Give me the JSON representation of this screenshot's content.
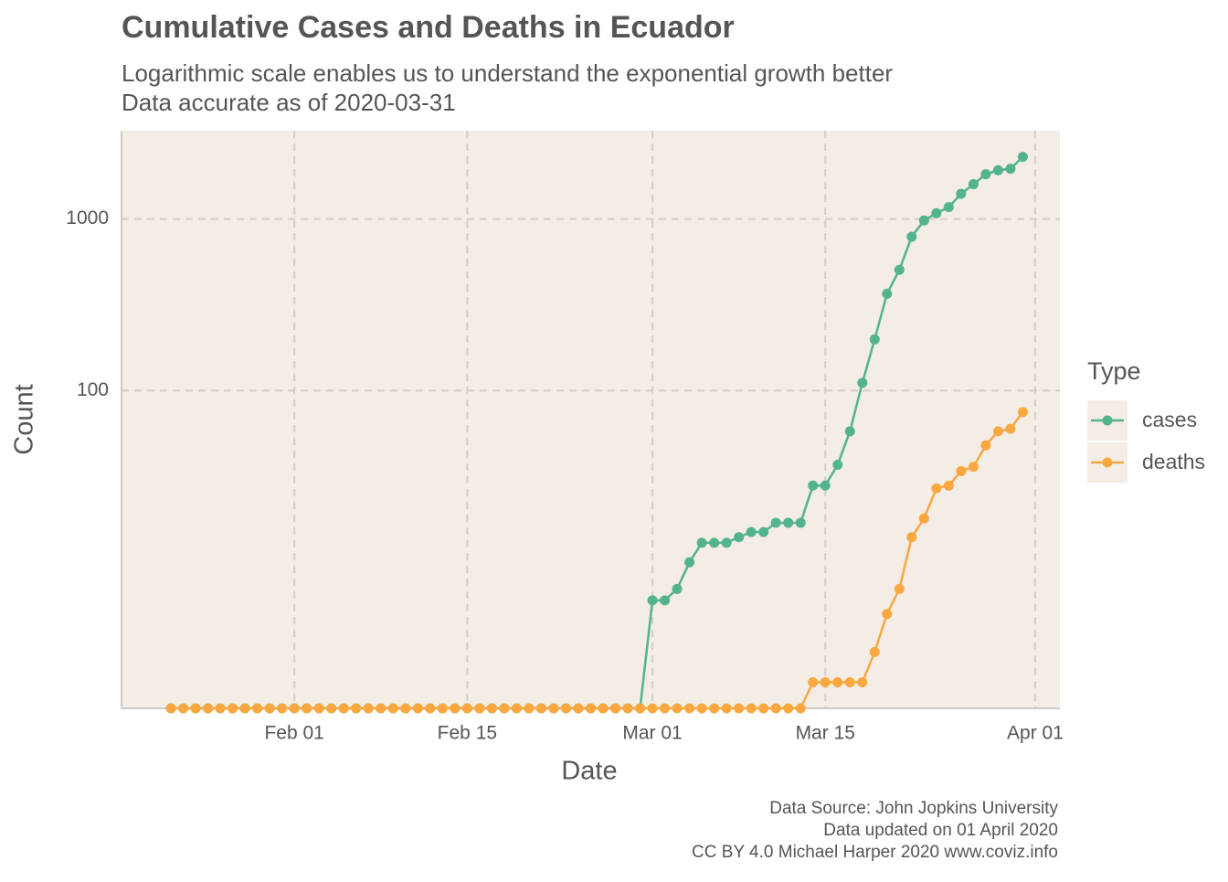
{
  "chart_data": {
    "type": "line",
    "title": "Cumulative Cases and Deaths in Ecuador",
    "subtitle": [
      "Logarithmic scale enables us to understand the exponential growth better",
      "Data accurate as of 2020-03-31"
    ],
    "x_label": "Date",
    "y_label": "Count",
    "caption": [
      "Data Source: John Jopkins University",
      "Data updated on 01 April 2020",
      "CC BY 4.0 Michael Harper 2020 www.coviz.info"
    ],
    "legend_title": "Type",
    "legend": "right",
    "log_y": true,
    "grid": true,
    "background": "#f3ede6",
    "x": [
      "Jan 22",
      "Jan 23",
      "Jan 24",
      "Jan 25",
      "Jan 26",
      "Jan 27",
      "Jan 28",
      "Jan 29",
      "Jan 30",
      "Jan 31",
      "Feb 01",
      "Feb 02",
      "Feb 03",
      "Feb 04",
      "Feb 05",
      "Feb 06",
      "Feb 07",
      "Feb 08",
      "Feb 09",
      "Feb 10",
      "Feb 11",
      "Feb 12",
      "Feb 13",
      "Feb 14",
      "Feb 15",
      "Feb 16",
      "Feb 17",
      "Feb 18",
      "Feb 19",
      "Feb 20",
      "Feb 21",
      "Feb 22",
      "Feb 23",
      "Feb 24",
      "Feb 25",
      "Feb 26",
      "Feb 27",
      "Feb 28",
      "Feb 29",
      "Mar 01",
      "Mar 02",
      "Mar 03",
      "Mar 04",
      "Mar 05",
      "Mar 06",
      "Mar 07",
      "Mar 08",
      "Mar 09",
      "Mar 10",
      "Mar 11",
      "Mar 12",
      "Mar 13",
      "Mar 14",
      "Mar 15",
      "Mar 16",
      "Mar 17",
      "Mar 18",
      "Mar 19",
      "Mar 20",
      "Mar 21",
      "Mar 22",
      "Mar 23",
      "Mar 24",
      "Mar 25",
      "Mar 26",
      "Mar 27",
      "Mar 28",
      "Mar 29",
      "Mar 30",
      "Mar 31"
    ],
    "xlim": [
      "Jan 18",
      "Apr 03"
    ],
    "xticks": [
      "Feb 01",
      "Feb 15",
      "Mar 01",
      "Mar 15",
      "Apr 01"
    ],
    "ylim": [
      1.41,
      3270
    ],
    "yticks": [
      100,
      1000
    ],
    "series": [
      {
        "name": "cases",
        "color": "#52b38e",
        "values": [
          0,
          0,
          0,
          0,
          0,
          0,
          0,
          0,
          0,
          0,
          0,
          0,
          0,
          0,
          0,
          0,
          0,
          0,
          0,
          0,
          0,
          0,
          0,
          0,
          0,
          0,
          0,
          0,
          0,
          0,
          0,
          0,
          0,
          0,
          0,
          0,
          0,
          0,
          0,
          6,
          6,
          7,
          10,
          13,
          13,
          13,
          14,
          15,
          15,
          17,
          17,
          17,
          28,
          28,
          37,
          58,
          111,
          199,
          367,
          506,
          789,
          981,
          1082,
          1173,
          1403,
          1595,
          1823,
          1924,
          1962,
          2302
        ]
      },
      {
        "name": "deaths",
        "color": "#f8a83f",
        "values": [
          0,
          0,
          0,
          0,
          0,
          0,
          0,
          0,
          0,
          0,
          0,
          0,
          0,
          0,
          0,
          0,
          0,
          0,
          0,
          0,
          0,
          0,
          0,
          0,
          0,
          0,
          0,
          0,
          0,
          0,
          0,
          0,
          0,
          0,
          0,
          0,
          0,
          0,
          0,
          0,
          0,
          0,
          0,
          0,
          0,
          0,
          0,
          0,
          0,
          0,
          0,
          0,
          2,
          2,
          2,
          2,
          2,
          3,
          5,
          7,
          14,
          18,
          27,
          28,
          34,
          36,
          48,
          58,
          60,
          75
        ]
      }
    ]
  }
}
